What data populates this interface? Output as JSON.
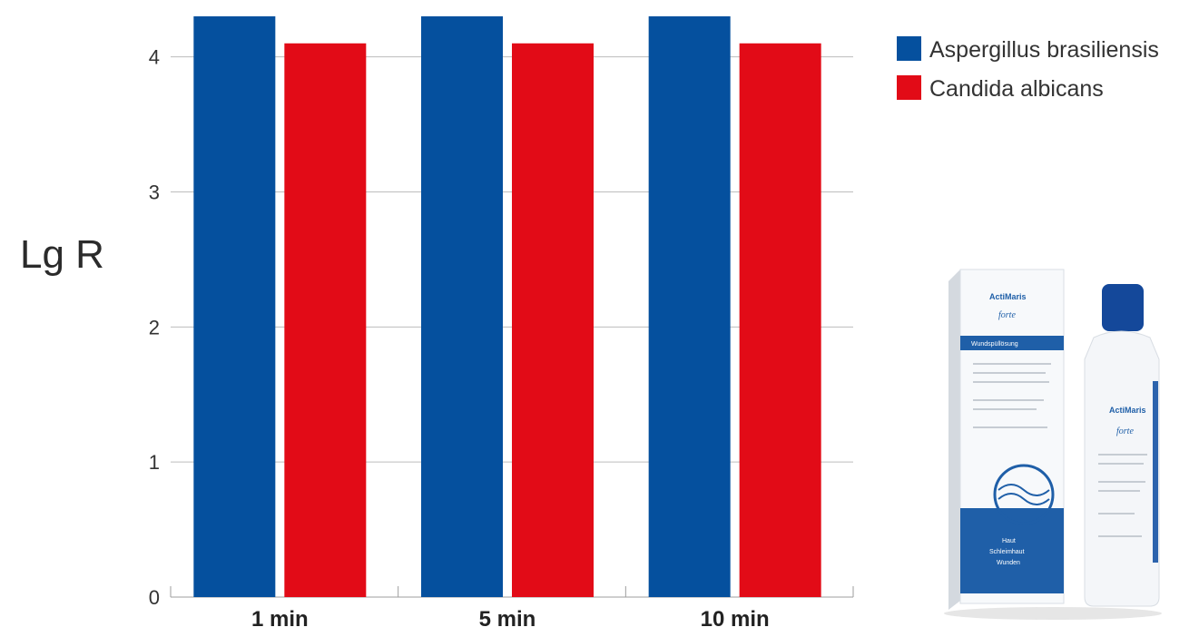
{
  "chart_data": {
    "type": "bar",
    "categories": [
      "1 min",
      "5 min",
      "10 min"
    ],
    "series": [
      {
        "name": "Aspergillus brasiliensis",
        "color": "#05509e",
        "values": [
          4.3,
          4.3,
          4.3
        ]
      },
      {
        "name": "Candida albicans",
        "color": "#e20b17",
        "values": [
          4.1,
          4.1,
          4.1
        ]
      }
    ],
    "ylabel": "Lg R",
    "yticks": [
      0,
      1,
      2,
      3,
      4
    ],
    "ylim": [
      0,
      4.3
    ],
    "grid": true,
    "legend": "top-right"
  },
  "product_image": {
    "box_brand": "ActiMaris",
    "box_variant": "forte",
    "box_band_text": "Wundspüllösung",
    "box_footer": [
      "Haut",
      "Schleimhaut",
      "Wunden"
    ],
    "bottle_brand": "ActiMaris",
    "bottle_variant": "forte"
  }
}
